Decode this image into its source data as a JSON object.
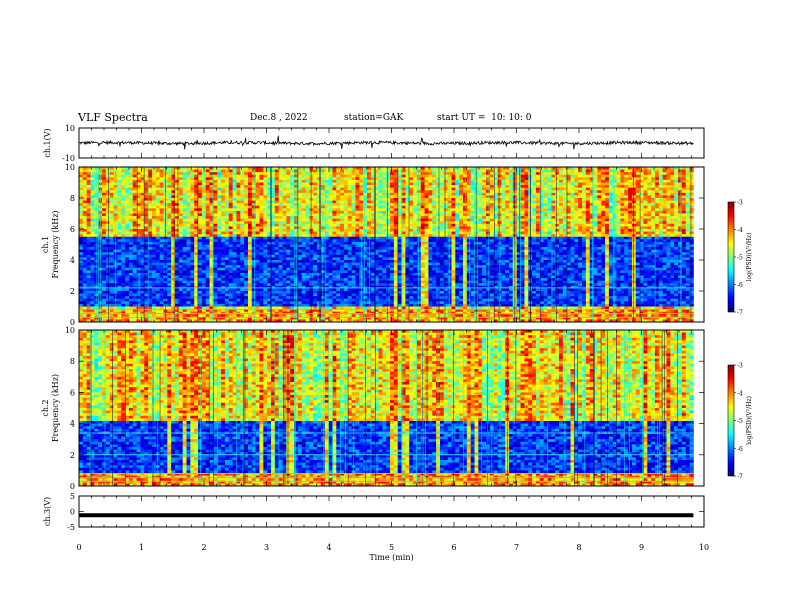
{
  "header": {
    "title": "VLF Spectra",
    "date": "Dec.8 , 2022",
    "station": "station=GAK",
    "start": "start UT =  10: 10: 0"
  },
  "chart_data": [
    {
      "type": "line",
      "panel": "ch1-waveform",
      "ylabel": "ch.1(V)",
      "ylim": [
        -10,
        10
      ],
      "yticks": [
        "10",
        "-10"
      ],
      "xlim": [
        0,
        10
      ],
      "data_end_min": 9.83,
      "baseline_v": 0.0,
      "noise_amp_v": 2.0
    },
    {
      "type": "heatmap",
      "panel": "ch1-spectrogram",
      "ylabel": "ch.1\nFrequency (kHz)",
      "ylim": [
        0,
        10
      ],
      "yticks": [
        "0",
        "2",
        "4",
        "6",
        "8",
        "10"
      ],
      "colorbar": {
        "label": "log(PSD)(V²/Hz)",
        "range": [
          -7,
          -3
        ],
        "ticks": [
          "-3",
          "-4",
          "-5",
          "-6",
          "-7"
        ]
      },
      "quiet_band_khz": [
        1.0,
        5.5
      ],
      "line_freqs_khz": [
        0.3,
        0.55,
        0.8,
        2.2
      ]
    },
    {
      "type": "heatmap",
      "panel": "ch2-spectrogram",
      "ylabel": "ch.2\nFrequency (kHz)",
      "ylim": [
        0,
        10
      ],
      "yticks": [
        "0",
        "2",
        "4",
        "6",
        "8",
        "10"
      ],
      "colorbar": {
        "label": "log(PSD)(V²/Hz)",
        "range": [
          -7,
          -3
        ],
        "ticks": [
          "-3",
          "-4",
          "-5",
          "-6",
          "-7"
        ]
      },
      "quiet_band_khz": [
        0.8,
        4.2
      ],
      "line_freqs_khz": [
        0.3,
        0.55,
        0.8,
        2.0,
        3.4
      ]
    },
    {
      "type": "line",
      "panel": "ch3-waveform",
      "ylabel": "ch.3(V)",
      "ylim": [
        -5,
        5
      ],
      "yticks": [
        "5",
        "0",
        "-5"
      ],
      "xlim": [
        0,
        10
      ],
      "xticks": [
        "0",
        "1",
        "2",
        "3",
        "4",
        "5",
        "6",
        "7",
        "8",
        "9",
        "10"
      ],
      "xlabel": "Time (min)",
      "data_end_min": 9.83,
      "constant_v": -1.2
    }
  ],
  "colors": {
    "line": "#000000",
    "axes": "#000000",
    "background": "#ffffff"
  }
}
